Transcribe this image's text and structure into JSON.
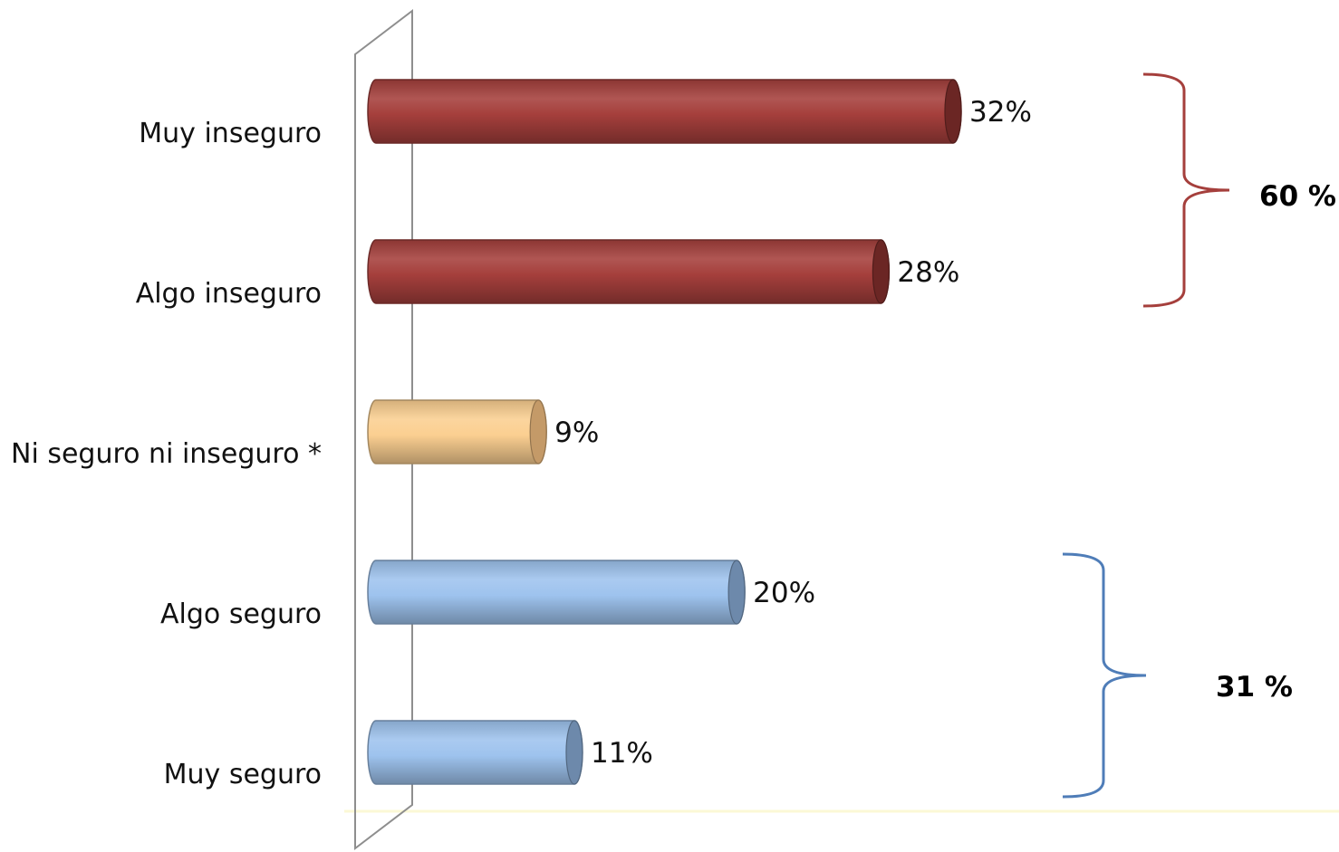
{
  "chart_data": {
    "type": "bar",
    "orientation": "horizontal",
    "categories": [
      "Muy inseguro",
      "Algo inseguro",
      "Ni seguro ni inseguro *",
      "Algo seguro",
      "Muy seguro"
    ],
    "values": [
      32,
      28,
      9,
      20,
      11
    ],
    "value_labels": [
      "32%",
      "28%",
      "9%",
      "20%",
      "11%"
    ],
    "bar_colors": [
      "#a53f3c",
      "#a53f3c",
      "#fbcf91",
      "#9ec3ee",
      "#9ec3ee"
    ],
    "bar_end_colors": [
      "#6b2624",
      "#6b2624",
      "#c49a68",
      "#6d89ab",
      "#6d89ab"
    ],
    "xlim": [
      0,
      32
    ],
    "title": "",
    "xlabel": "",
    "ylabel": "",
    "grid": false,
    "legend": "none",
    "annotations": [
      {
        "text": "60 %",
        "color": "#a53f3c",
        "categories": [
          "Muy inseguro",
          "Algo inseguro"
        ]
      },
      {
        "text": "31 %",
        "color": "#4f7db8",
        "categories": [
          "Algo seguro",
          "Muy seguro"
        ]
      }
    ]
  }
}
